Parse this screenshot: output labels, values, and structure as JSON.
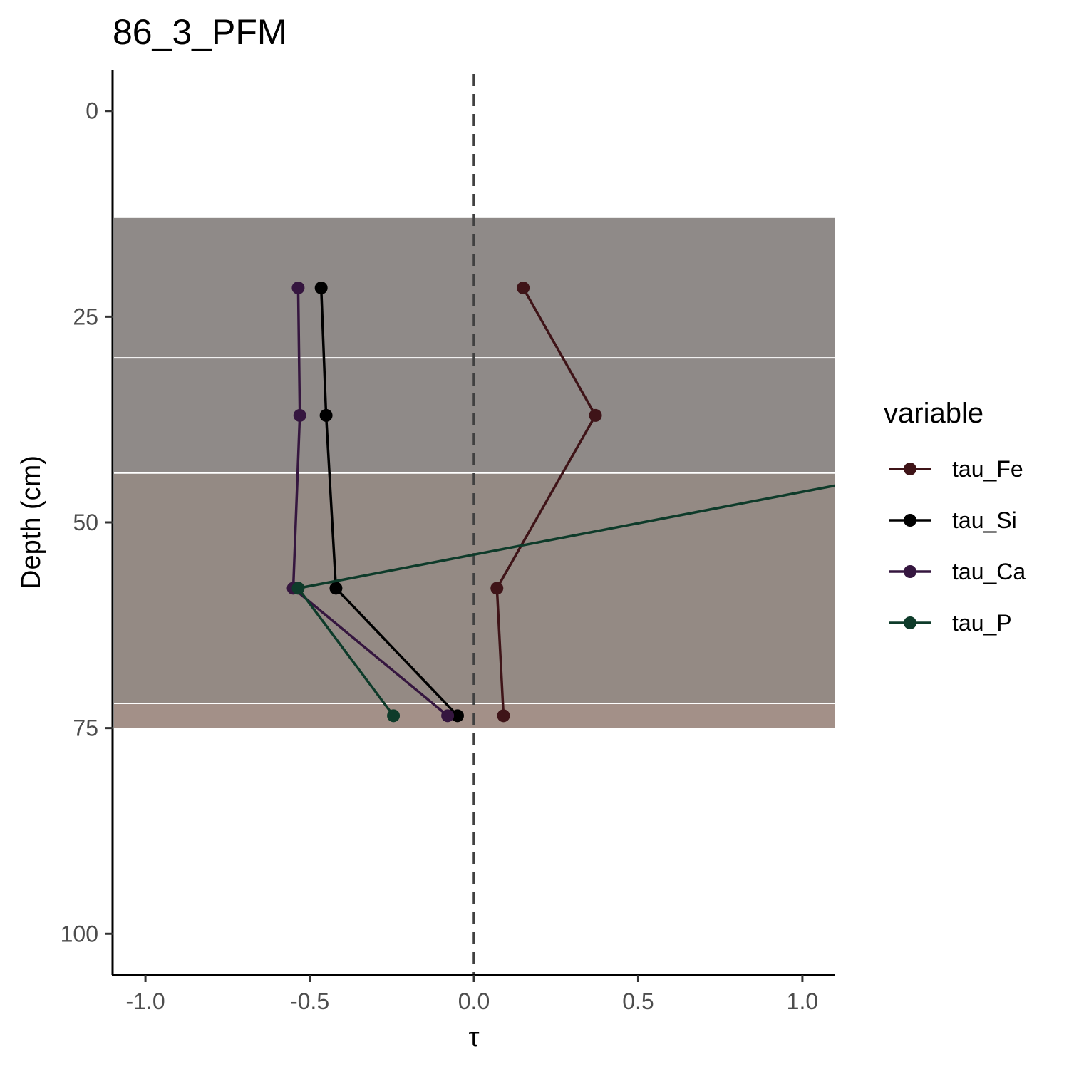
{
  "chart_data": {
    "type": "line",
    "title": "86_3_PFM",
    "xlabel": "τ",
    "ylabel": "Depth (cm)",
    "xlim": [
      -1.1,
      1.1
    ],
    "ylim": [
      105,
      -5
    ],
    "y_reversed": true,
    "x_ticks": [
      "-1.0",
      "-0.5",
      "0.0",
      "0.5",
      "1.0"
    ],
    "x_tick_values": [
      -1.0,
      -0.5,
      0.0,
      0.5,
      1.0
    ],
    "y_ticks": [
      "0",
      "25",
      "50",
      "75",
      "100"
    ],
    "y_tick_values": [
      0,
      25,
      50,
      75,
      100
    ],
    "reference_line": {
      "x": 0,
      "style": "dashed",
      "color": "#404040"
    },
    "horizons": [
      {
        "top": 13,
        "bottom": 30,
        "color": "#8f8a88"
      },
      {
        "top": 30,
        "bottom": 44,
        "color": "#8f8a88"
      },
      {
        "top": 44,
        "bottom": 72,
        "color": "#948a84"
      },
      {
        "top": 72,
        "bottom": 75,
        "color": "#a39088"
      }
    ],
    "legend": {
      "title": "variable",
      "position": "right"
    },
    "series": [
      {
        "name": "tau_Fe",
        "color": "#3f1418",
        "points": [
          [
            0.15,
            21.5
          ],
          [
            0.37,
            37
          ],
          [
            0.07,
            58
          ],
          [
            0.09,
            73.5
          ]
        ]
      },
      {
        "name": "tau_Si",
        "color": "#000000",
        "points": [
          [
            -0.465,
            21.5
          ],
          [
            -0.45,
            37
          ],
          [
            -0.42,
            58
          ],
          [
            -0.05,
            73.5
          ]
        ]
      },
      {
        "name": "tau_Ca",
        "color": "#35163f",
        "points": [
          [
            -0.535,
            21.5
          ],
          [
            -0.53,
            37
          ],
          [
            -0.55,
            58
          ],
          [
            -0.08,
            73.5
          ]
        ]
      },
      {
        "name": "tau_P",
        "color": "#0e3b2a",
        "points": [
          [
            1.3,
            44
          ],
          [
            -0.535,
            58
          ],
          [
            -0.245,
            73.5
          ]
        ]
      }
    ]
  }
}
